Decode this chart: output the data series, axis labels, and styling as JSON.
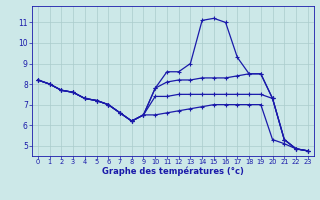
{
  "background_color": "#cce8e8",
  "grid_color": "#aacccc",
  "line_color": "#1a1aaa",
  "xlabel": "Graphe des températures (°c)",
  "xlim": [
    -0.5,
    23.5
  ],
  "ylim": [
    4.5,
    11.8
  ],
  "yticks": [
    5,
    6,
    7,
    8,
    9,
    10,
    11
  ],
  "xticks": [
    0,
    1,
    2,
    3,
    4,
    5,
    6,
    7,
    8,
    9,
    10,
    11,
    12,
    13,
    14,
    15,
    16,
    17,
    18,
    19,
    20,
    21,
    22,
    23
  ],
  "series": [
    {
      "x": [
        0,
        1,
        2,
        3,
        4,
        5,
        6,
        7,
        8,
        9,
        10,
        11,
        12,
        13,
        14,
        15,
        16,
        17,
        18,
        19,
        20,
        21,
        22,
        23
      ],
      "y": [
        8.2,
        8.0,
        7.7,
        7.6,
        7.3,
        7.2,
        7.0,
        6.6,
        6.2,
        6.5,
        6.5,
        6.6,
        6.7,
        6.8,
        6.9,
        7.0,
        7.0,
        7.0,
        7.0,
        7.0,
        5.3,
        5.1,
        4.85,
        4.75
      ]
    },
    {
      "x": [
        0,
        1,
        2,
        3,
        4,
        5,
        6,
        7,
        8,
        9,
        10,
        11,
        12,
        13,
        14,
        15,
        16,
        17,
        18,
        19,
        20,
        21,
        22,
        23
      ],
      "y": [
        8.2,
        8.0,
        7.7,
        7.6,
        7.3,
        7.2,
        7.0,
        6.6,
        6.2,
        6.5,
        7.8,
        8.6,
        8.6,
        9.0,
        11.1,
        11.2,
        11.0,
        9.3,
        8.5,
        8.5,
        7.3,
        5.3,
        4.85,
        4.75
      ]
    },
    {
      "x": [
        0,
        1,
        2,
        3,
        4,
        5,
        6,
        7,
        8,
        9,
        10,
        11,
        12,
        13,
        14,
        15,
        16,
        17,
        18,
        19,
        20,
        21,
        22,
        23
      ],
      "y": [
        8.2,
        8.0,
        7.7,
        7.6,
        7.3,
        7.2,
        7.0,
        6.6,
        6.2,
        6.5,
        7.8,
        8.1,
        8.2,
        8.2,
        8.3,
        8.3,
        8.3,
        8.4,
        8.5,
        8.5,
        7.3,
        5.3,
        4.85,
        4.75
      ]
    },
    {
      "x": [
        0,
        1,
        2,
        3,
        4,
        5,
        6,
        7,
        8,
        9,
        10,
        11,
        12,
        13,
        14,
        15,
        16,
        17,
        18,
        19,
        20,
        21,
        22,
        23
      ],
      "y": [
        8.2,
        8.0,
        7.7,
        7.6,
        7.3,
        7.2,
        7.0,
        6.6,
        6.2,
        6.5,
        7.4,
        7.4,
        7.5,
        7.5,
        7.5,
        7.5,
        7.5,
        7.5,
        7.5,
        7.5,
        7.3,
        5.3,
        4.85,
        4.75
      ]
    }
  ],
  "marker": "+",
  "markersize": 3.5,
  "linewidth": 0.9
}
